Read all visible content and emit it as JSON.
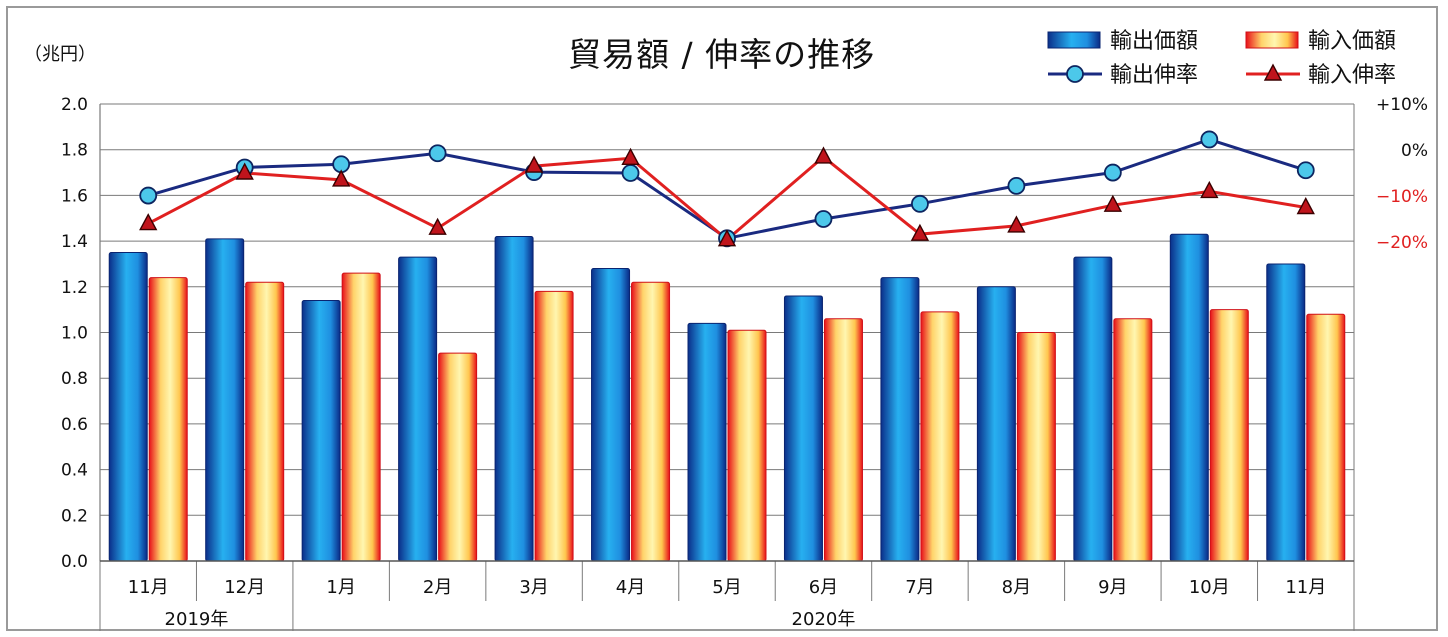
{
  "chart_data": {
    "type": "bar",
    "title": "貿易額 / 伸率の推移",
    "unit_label": "（兆円）",
    "categories": [
      "11月",
      "12月",
      "1月",
      "2月",
      "3月",
      "4月",
      "5月",
      "6月",
      "7月",
      "8月",
      "9月",
      "10月",
      "11月"
    ],
    "year_groups": [
      {
        "label": "2019年",
        "count": 2
      },
      {
        "label": "2020年",
        "count": 11
      }
    ],
    "ylim": [
      0,
      2.0
    ],
    "yticks": [
      "0.0",
      "0.2",
      "0.4",
      "0.6",
      "0.8",
      "1.0",
      "1.2",
      "1.4",
      "1.6",
      "1.8",
      "2.0"
    ],
    "y2lim": [
      -20,
      10
    ],
    "y2ticks": [
      {
        "value": 10,
        "label": "+10%",
        "color": "#111111"
      },
      {
        "value": 0,
        "label": "0%",
        "color": "#111111"
      },
      {
        "value": -10,
        "label": "−10%",
        "color": "#e02020"
      },
      {
        "value": -20,
        "label": "−20%",
        "color": "#e02020"
      }
    ],
    "grid": true,
    "legend_position": "top-right",
    "bar_series": [
      {
        "name": "輸出価額",
        "values": [
          1.35,
          1.41,
          1.14,
          1.33,
          1.42,
          1.28,
          1.04,
          1.16,
          1.24,
          1.2,
          1.33,
          1.43,
          1.3
        ],
        "color": "#1f8fe0"
      },
      {
        "name": "輸入価額",
        "values": [
          1.24,
          1.22,
          1.26,
          0.91,
          1.18,
          1.22,
          1.01,
          1.06,
          1.09,
          1.0,
          1.06,
          1.1,
          1.08
        ],
        "color": "#ffd070"
      }
    ],
    "line_series": [
      {
        "name": "輸出伸率",
        "values": [
          -9.9,
          -3.8,
          -3.1,
          -0.7,
          -4.8,
          -5.0,
          -19.2,
          -15.0,
          -11.7,
          -7.8,
          -4.9,
          2.3,
          -4.4
        ],
        "color": "#1a2a80",
        "marker": "circle"
      },
      {
        "name": "輸入伸率",
        "values": [
          -16.0,
          -5.0,
          -6.5,
          -17.0,
          -3.5,
          -1.8,
          -19.5,
          -1.5,
          -18.3,
          -16.5,
          -12.0,
          -9.0,
          -12.5
        ],
        "color": "#e02020",
        "marker": "triangle"
      }
    ]
  }
}
